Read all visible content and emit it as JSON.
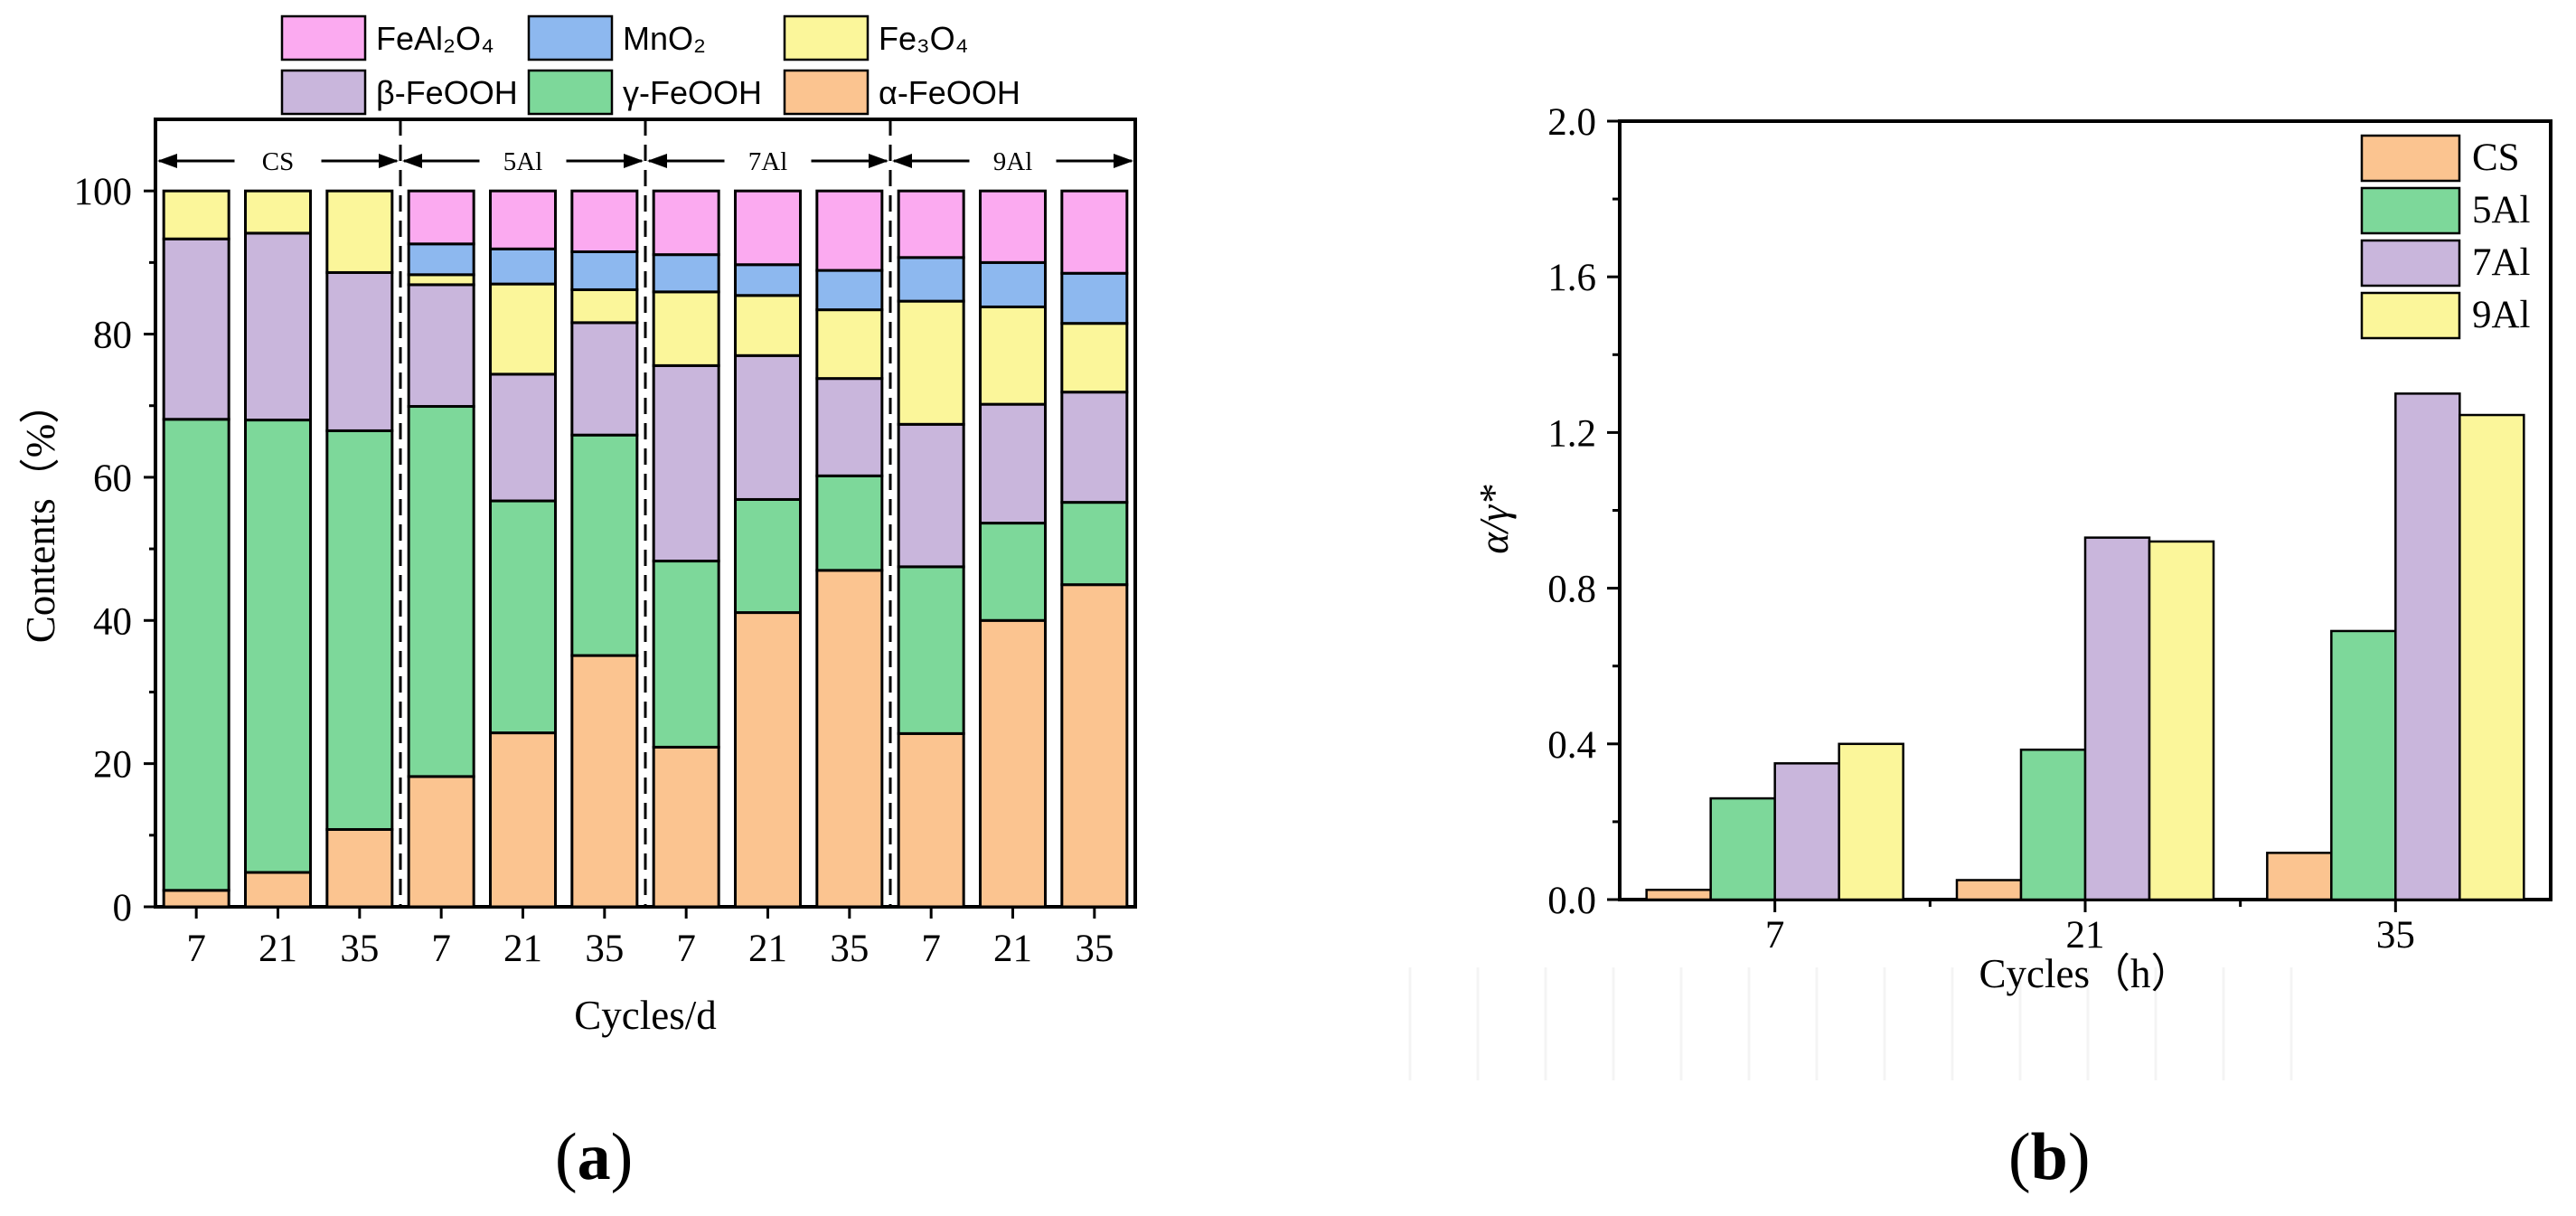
{
  "figure": {
    "panel_a_label": "a",
    "panel_b_label": "b"
  },
  "colors": {
    "alpha": "#fbc490",
    "gamma": "#7dd89a",
    "beta": "#c9b6dc",
    "fe3o4": "#fbf69a",
    "mno2": "#8db8ef",
    "feal2o4": "#fbaaf0",
    "cs": "#fbc490",
    "al5": "#7dd89a",
    "al7": "#c9b6dc",
    "al9": "#fbf69a"
  },
  "chart_data": [
    {
      "type": "bar",
      "stacked": true,
      "panel": "a",
      "title": "",
      "xlabel": "Cycles/d",
      "ylabel": "Contents（%）",
      "ylim": [
        0,
        110
      ],
      "yticks": [
        0,
        20,
        40,
        60,
        80,
        100
      ],
      "categories": [
        "7",
        "21",
        "35",
        "7",
        "21",
        "35",
        "7",
        "21",
        "35",
        "7",
        "21",
        "35"
      ],
      "groups": [
        "CS",
        "5Al",
        "7Al",
        "9Al"
      ],
      "legend": [
        {
          "key": "feal2o4",
          "label": "FeAl₂O₄"
        },
        {
          "key": "mno2",
          "label": "MnO₂"
        },
        {
          "key": "fe3o4",
          "label": "Fe₃O₄"
        },
        {
          "key": "beta",
          "label": "β-FeOOH"
        },
        {
          "key": "gamma",
          "label": "γ-FeOOH"
        },
        {
          "key": "alpha",
          "label": "α-FeOOH"
        }
      ],
      "series": [
        {
          "name": "α-FeOOH",
          "key": "alpha",
          "values": [
            2.3,
            4.8,
            10.8,
            18.2,
            24.3,
            35.1,
            22.3,
            41.1,
            47.0,
            24.2,
            40.0,
            45.0
          ]
        },
        {
          "name": "γ-FeOOH",
          "key": "gamma",
          "values": [
            65.8,
            63.2,
            55.7,
            51.7,
            32.4,
            30.8,
            26.0,
            15.8,
            13.2,
            23.3,
            13.6,
            11.5
          ]
        },
        {
          "name": "β-FeOOH",
          "key": "beta",
          "values": [
            25.2,
            26.1,
            22.1,
            17.0,
            17.7,
            15.7,
            27.3,
            20.1,
            13.6,
            19.9,
            16.6,
            15.4
          ]
        },
        {
          "name": "Fe₃O₄",
          "key": "fe3o4",
          "values": [
            6.7,
            5.9,
            11.4,
            1.4,
            12.6,
            4.6,
            10.3,
            8.4,
            9.6,
            17.2,
            13.6,
            9.6
          ]
        },
        {
          "name": "MnO₂",
          "key": "mno2",
          "values": [
            0,
            0,
            0,
            4.3,
            4.9,
            5.3,
            5.2,
            4.3,
            5.5,
            6.1,
            6.2,
            7.0
          ]
        },
        {
          "name": "FeAl₂O₄",
          "key": "feal2o4",
          "values": [
            0,
            0,
            0,
            7.4,
            8.1,
            8.5,
            8.9,
            10.3,
            11.1,
            9.3,
            10.0,
            11.5
          ]
        }
      ]
    },
    {
      "type": "bar",
      "panel": "b",
      "title": "",
      "xlabel": "Cycles（h）",
      "ylabel": "α/γ*",
      "ylim": [
        0,
        2.0
      ],
      "yticks": [
        "0.0",
        "0.4",
        "0.8",
        "1.2",
        "1.6",
        "2.0"
      ],
      "categories": [
        "7",
        "21",
        "35"
      ],
      "legend_position": "top-right",
      "series": [
        {
          "name": "CS",
          "key": "cs",
          "values": [
            0.025,
            0.05,
            0.12
          ]
        },
        {
          "name": "5Al",
          "key": "al5",
          "values": [
            0.26,
            0.385,
            0.69
          ]
        },
        {
          "name": "7Al",
          "key": "al7",
          "values": [
            0.35,
            0.93,
            1.3
          ]
        },
        {
          "name": "9Al",
          "key": "al9",
          "values": [
            0.4,
            0.92,
            1.245
          ]
        }
      ]
    }
  ]
}
